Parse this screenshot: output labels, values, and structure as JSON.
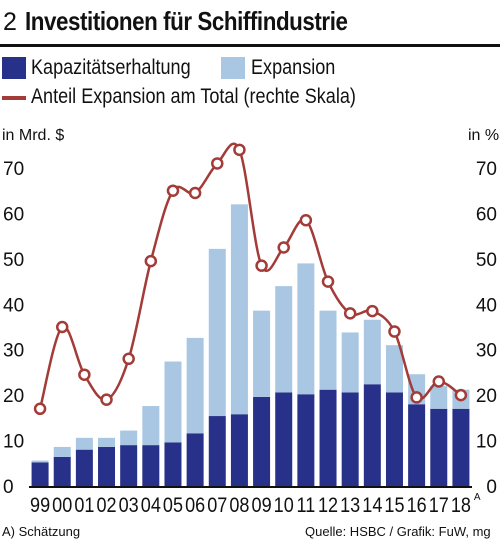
{
  "header": {
    "figure_number": "2",
    "title": "Investitionen für Schiffindustrie"
  },
  "legend": {
    "series1": "Kapazitätserhaltung",
    "series2": "Expansion",
    "series3": "Anteil Expansion am Total (rechte Skala)"
  },
  "axis": {
    "left_unit": "in Mrd. $",
    "right_unit": "in %"
  },
  "footer": {
    "note": "A) Schätzung",
    "source": "Quelle: HSBC / Grafik: FuW, mg"
  },
  "colors": {
    "capacity": "#27318a",
    "expansion": "#a9c7e2",
    "share_line": "#a33b38"
  },
  "chart_data": {
    "type": "bar",
    "stacked": true,
    "title": "Investitionen für Schiffindustrie",
    "categories": [
      "99",
      "00",
      "01",
      "02",
      "03",
      "04",
      "05",
      "06",
      "07",
      "08",
      "09",
      "10",
      "11",
      "12",
      "13",
      "14",
      "15",
      "16",
      "17",
      "18"
    ],
    "last_category_footnote": "A",
    "series": [
      {
        "name": "Kapazitätserhaltung",
        "axis": "left",
        "values": [
          5.2,
          6.4,
          8.0,
          8.6,
          9.0,
          9.0,
          9.6,
          11.6,
          15.4,
          15.8,
          19.6,
          20.6,
          20.2,
          21.2,
          20.6,
          22.4,
          20.6,
          18.0,
          17.0,
          17.0
        ]
      },
      {
        "name": "Expansion",
        "axis": "left",
        "values": [
          0.4,
          2.2,
          2.6,
          2.0,
          3.2,
          8.6,
          17.8,
          21.0,
          36.8,
          46.2,
          19.0,
          23.4,
          28.8,
          17.4,
          13.2,
          14.2,
          10.4,
          6.6,
          5.0,
          4.2
        ]
      },
      {
        "name": "Anteil Expansion am Total (rechte Skala)",
        "type": "line",
        "axis": "right",
        "values": [
          17,
          35,
          24.5,
          19,
          28,
          49.5,
          65,
          64.5,
          71,
          74,
          48.5,
          52.5,
          58.5,
          45,
          38,
          38.5,
          34,
          19.5,
          23,
          20
        ]
      }
    ],
    "y_left": {
      "label": "in Mrd. $",
      "range": [
        0,
        70
      ],
      "ticks": [
        0,
        10,
        20,
        30,
        40,
        50,
        60,
        70
      ]
    },
    "y_right": {
      "label": "in %",
      "range": [
        0,
        70
      ],
      "ticks": [
        0,
        10,
        20,
        30,
        40,
        50,
        60,
        70
      ]
    },
    "grid": false
  }
}
